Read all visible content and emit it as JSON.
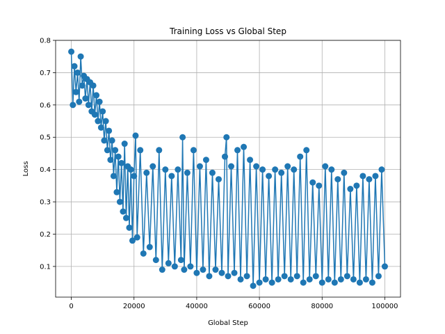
{
  "chart_data": {
    "type": "line",
    "title": "Training Loss vs Global Step",
    "xlabel": "Global Step",
    "ylabel": "Loss",
    "xlim": [
      -5000,
      105000
    ],
    "ylim": [
      0.005,
      0.8
    ],
    "xticks": [
      0,
      20000,
      40000,
      60000,
      80000,
      100000
    ],
    "xtick_labels": [
      "0",
      "20000",
      "40000",
      "60000",
      "80000",
      "100000"
    ],
    "yticks": [
      0.1,
      0.2,
      0.3,
      0.4,
      0.5,
      0.6,
      0.7,
      0.8
    ],
    "ytick_labels": [
      "0.1",
      "0.2",
      "0.3",
      "0.4",
      "0.5",
      "0.6",
      "0.7",
      "0.8"
    ],
    "grid": true,
    "marker": "circle",
    "color": "#1f77b4",
    "series": [
      {
        "values": [
          [
            0,
            0.765
          ],
          [
            500,
            0.6
          ],
          [
            1000,
            0.72
          ],
          [
            1500,
            0.64
          ],
          [
            2000,
            0.7
          ],
          [
            2500,
            0.61
          ],
          [
            3000,
            0.75
          ],
          [
            3500,
            0.66
          ],
          [
            4000,
            0.69
          ],
          [
            4500,
            0.62
          ],
          [
            5000,
            0.68
          ],
          [
            5500,
            0.6
          ],
          [
            6000,
            0.67
          ],
          [
            6500,
            0.58
          ],
          [
            7000,
            0.66
          ],
          [
            7500,
            0.57
          ],
          [
            8000,
            0.63
          ],
          [
            8500,
            0.55
          ],
          [
            9000,
            0.61
          ],
          [
            9500,
            0.53
          ],
          [
            10000,
            0.58
          ],
          [
            10500,
            0.49
          ],
          [
            11000,
            0.55
          ],
          [
            11500,
            0.46
          ],
          [
            12000,
            0.52
          ],
          [
            12500,
            0.43
          ],
          [
            13000,
            0.49
          ],
          [
            13500,
            0.38
          ],
          [
            14000,
            0.46
          ],
          [
            14500,
            0.33
          ],
          [
            15000,
            0.44
          ],
          [
            15500,
            0.3
          ],
          [
            16000,
            0.42
          ],
          [
            16500,
            0.27
          ],
          [
            17000,
            0.48
          ],
          [
            17500,
            0.25
          ],
          [
            18000,
            0.41
          ],
          [
            18500,
            0.22
          ],
          [
            19000,
            0.4
          ],
          [
            19500,
            0.18
          ],
          [
            20000,
            0.38
          ],
          [
            20500,
            0.505
          ],
          [
            21000,
            0.19
          ],
          [
            22000,
            0.46
          ],
          [
            23000,
            0.14
          ],
          [
            24000,
            0.39
          ],
          [
            25000,
            0.16
          ],
          [
            26000,
            0.41
          ],
          [
            27000,
            0.12
          ],
          [
            28000,
            0.46
          ],
          [
            29000,
            0.09
          ],
          [
            30000,
            0.4
          ],
          [
            31000,
            0.11
          ],
          [
            32000,
            0.38
          ],
          [
            33000,
            0.1
          ],
          [
            34000,
            0.4
          ],
          [
            35000,
            0.12
          ],
          [
            35500,
            0.5
          ],
          [
            36000,
            0.09
          ],
          [
            37000,
            0.39
          ],
          [
            38000,
            0.1
          ],
          [
            39000,
            0.46
          ],
          [
            40000,
            0.08
          ],
          [
            41000,
            0.41
          ],
          [
            42000,
            0.09
          ],
          [
            43000,
            0.43
          ],
          [
            44000,
            0.07
          ],
          [
            45000,
            0.39
          ],
          [
            46000,
            0.09
          ],
          [
            47000,
            0.37
          ],
          [
            48000,
            0.08
          ],
          [
            49000,
            0.44
          ],
          [
            49500,
            0.5
          ],
          [
            50000,
            0.07
          ],
          [
            51000,
            0.41
          ],
          [
            52000,
            0.08
          ],
          [
            53000,
            0.46
          ],
          [
            54000,
            0.06
          ],
          [
            55000,
            0.47
          ],
          [
            56000,
            0.07
          ],
          [
            57000,
            0.43
          ],
          [
            58000,
            0.04
          ],
          [
            59000,
            0.41
          ],
          [
            60000,
            0.05
          ],
          [
            61000,
            0.4
          ],
          [
            62000,
            0.06
          ],
          [
            63000,
            0.38
          ],
          [
            64000,
            0.05
          ],
          [
            65000,
            0.4
          ],
          [
            66000,
            0.06
          ],
          [
            67000,
            0.39
          ],
          [
            68000,
            0.07
          ],
          [
            69000,
            0.41
          ],
          [
            70000,
            0.06
          ],
          [
            71000,
            0.4
          ],
          [
            72000,
            0.07
          ],
          [
            73000,
            0.44
          ],
          [
            74000,
            0.05
          ],
          [
            75000,
            0.46
          ],
          [
            76000,
            0.06
          ],
          [
            77000,
            0.36
          ],
          [
            78000,
            0.07
          ],
          [
            79000,
            0.35
          ],
          [
            80000,
            0.05
          ],
          [
            81000,
            0.41
          ],
          [
            82000,
            0.06
          ],
          [
            83000,
            0.4
          ],
          [
            84000,
            0.05
          ],
          [
            85000,
            0.37
          ],
          [
            86000,
            0.06
          ],
          [
            87000,
            0.39
          ],
          [
            88000,
            0.07
          ],
          [
            89000,
            0.34
          ],
          [
            90000,
            0.06
          ],
          [
            91000,
            0.35
          ],
          [
            92000,
            0.05
          ],
          [
            93000,
            0.38
          ],
          [
            94000,
            0.06
          ],
          [
            95000,
            0.37
          ],
          [
            96000,
            0.05
          ],
          [
            97000,
            0.38
          ],
          [
            98000,
            0.07
          ],
          [
            99000,
            0.4
          ],
          [
            100000,
            0.1
          ]
        ]
      }
    ]
  }
}
